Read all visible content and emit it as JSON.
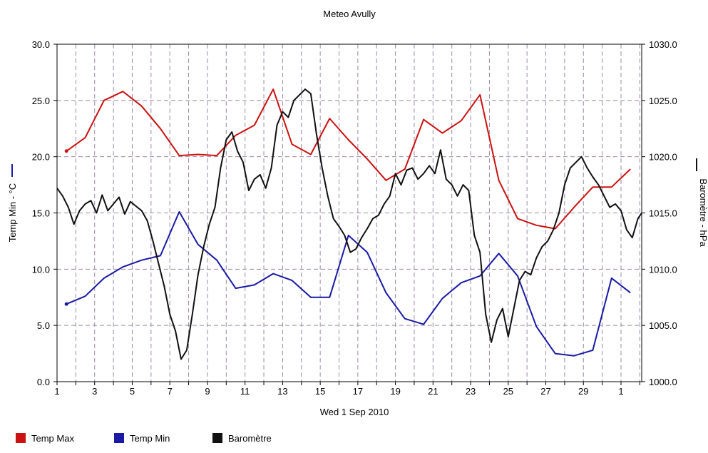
{
  "chart_data": {
    "type": "line",
    "title": "Meteo  Avully",
    "xlabel": "Wed 1 Sep 2010",
    "ylabel_left": "Temp Min - °C",
    "ylabel_right": "Baromètre - hPa",
    "x_tick_labels": [
      "1",
      "3",
      "5",
      "7",
      "9",
      "11",
      "13",
      "15",
      "17",
      "19",
      "21",
      "23",
      "25",
      "27",
      "29",
      "1"
    ],
    "x_tick_days": [
      1,
      3,
      5,
      7,
      9,
      11,
      13,
      15,
      17,
      19,
      21,
      23,
      25,
      27,
      29,
      31
    ],
    "xlim_days": [
      1,
      32.1
    ],
    "grid": true,
    "y_left": {
      "ylim": [
        0,
        30
      ],
      "ticks": [
        0,
        5,
        10,
        15,
        20,
        25,
        30
      ],
      "tick_labels": [
        "0.0",
        "5.0",
        "10.0",
        "15.0",
        "20.0",
        "25.0",
        "30.0"
      ]
    },
    "y_right": {
      "ylim": [
        1000,
        1030
      ],
      "ticks": [
        1000,
        1005,
        1010,
        1015,
        1020,
        1025,
        1030
      ],
      "tick_labels": [
        "1000.0",
        "1005.0",
        "1010.0",
        "1015.0",
        "1020.0",
        "1025.0",
        "1030.0"
      ]
    },
    "legend_position": "bottom-left",
    "series": [
      {
        "name": "Temp Max",
        "axis": "left",
        "color": "#cc1111",
        "x": [
          1.5,
          2.5,
          3.5,
          4.5,
          5.5,
          6.5,
          7.5,
          8.5,
          9.5,
          10.5,
          11.5,
          12.5,
          13.5,
          14.5,
          15.5,
          16.5,
          17.5,
          18.5,
          19.5,
          20.5,
          21.5,
          22.5,
          23.5,
          24.5,
          25.5,
          26.5,
          27.5,
          28.5,
          29.5,
          30.5,
          31.5
        ],
        "values": [
          20.5,
          21.7,
          25.0,
          25.8,
          24.5,
          22.5,
          20.1,
          20.2,
          20.1,
          21.9,
          22.8,
          26.0,
          21.1,
          20.2,
          23.4,
          21.5,
          19.8,
          17.9,
          18.9,
          23.3,
          22.1,
          23.2,
          25.5,
          17.9,
          14.5,
          13.9,
          13.6,
          15.5,
          17.3,
          17.3,
          18.9
        ]
      },
      {
        "name": "Temp Min",
        "axis": "left",
        "color": "#1a1aa6",
        "x": [
          1.5,
          2.5,
          3.5,
          4.5,
          5.5,
          6.5,
          7.5,
          8.5,
          9.5,
          10.5,
          11.5,
          12.5,
          13.5,
          14.5,
          15.5,
          16.5,
          17.5,
          18.5,
          19.5,
          20.5,
          21.5,
          22.5,
          23.5,
          24.5,
          25.5,
          26.5,
          27.5,
          28.5,
          29.5,
          30.5,
          31.5
        ],
        "values": [
          6.9,
          7.6,
          9.2,
          10.2,
          10.8,
          11.2,
          15.1,
          12.2,
          10.8,
          8.3,
          8.6,
          9.6,
          9.0,
          7.5,
          7.5,
          13.0,
          11.5,
          7.9,
          5.6,
          5.1,
          7.4,
          8.8,
          9.4,
          11.4,
          9.4,
          4.9,
          2.5,
          2.3,
          2.8,
          9.2,
          7.9
        ]
      },
      {
        "name": "Baromètre",
        "axis": "right",
        "color": "#111111",
        "x": [
          1.0,
          1.3,
          1.6,
          1.9,
          2.2,
          2.5,
          2.8,
          3.1,
          3.4,
          3.7,
          4.0,
          4.3,
          4.6,
          4.9,
          5.2,
          5.5,
          5.8,
          6.1,
          6.4,
          6.7,
          7.0,
          7.3,
          7.6,
          7.9,
          8.2,
          8.5,
          8.8,
          9.1,
          9.4,
          9.7,
          10.0,
          10.3,
          10.6,
          10.9,
          11.2,
          11.5,
          11.8,
          12.1,
          12.4,
          12.7,
          13.0,
          13.3,
          13.6,
          13.9,
          14.2,
          14.5,
          14.8,
          15.1,
          15.4,
          15.7,
          16.0,
          16.3,
          16.6,
          16.9,
          17.2,
          17.5,
          17.8,
          18.1,
          18.4,
          18.7,
          19.0,
          19.3,
          19.6,
          19.9,
          20.2,
          20.5,
          20.8,
          21.1,
          21.4,
          21.7,
          22.0,
          22.3,
          22.6,
          22.9,
          23.2,
          23.5,
          23.8,
          24.1,
          24.4,
          24.7,
          25.0,
          25.3,
          25.6,
          25.9,
          26.2,
          26.5,
          26.8,
          27.1,
          27.4,
          27.7,
          28.0,
          28.3,
          28.6,
          28.9,
          29.2,
          29.5,
          29.8,
          30.1,
          30.4,
          30.7,
          31.0,
          31.3,
          31.6,
          31.9,
          32.1
        ],
        "values": [
          1017.2,
          1016.5,
          1015.5,
          1014.0,
          1015.2,
          1015.8,
          1016.1,
          1015.0,
          1016.6,
          1015.2,
          1015.8,
          1016.4,
          1014.9,
          1016.0,
          1015.6,
          1015.2,
          1014.3,
          1012.5,
          1010.5,
          1008.5,
          1006.0,
          1004.5,
          1002.0,
          1002.8,
          1006.0,
          1009.5,
          1012.0,
          1014.0,
          1015.5,
          1019.0,
          1021.5,
          1022.2,
          1020.5,
          1019.5,
          1017.0,
          1018.0,
          1018.4,
          1017.2,
          1019.0,
          1022.8,
          1024.0,
          1023.5,
          1025.0,
          1025.5,
          1026.0,
          1025.6,
          1022.0,
          1019.0,
          1016.5,
          1014.5,
          1013.8,
          1013.0,
          1011.5,
          1011.8,
          1012.8,
          1013.6,
          1014.5,
          1014.8,
          1015.8,
          1016.5,
          1018.5,
          1017.5,
          1018.8,
          1019.0,
          1018.0,
          1018.5,
          1019.2,
          1018.5,
          1020.6,
          1018.0,
          1017.5,
          1016.5,
          1017.5,
          1017.0,
          1013.0,
          1011.5,
          1006.0,
          1003.5,
          1005.5,
          1006.5,
          1004.0,
          1006.5,
          1009.0,
          1009.8,
          1009.5,
          1011.0,
          1012.0,
          1012.5,
          1013.5,
          1015.0,
          1017.5,
          1019.0,
          1019.5,
          1020.0,
          1019.0,
          1018.2,
          1017.5,
          1016.5,
          1015.5,
          1015.8,
          1015.2,
          1013.5,
          1012.8,
          1014.5,
          1015.0
        ]
      }
    ],
    "legend": [
      {
        "label": "Temp Max",
        "color": "#cc1111"
      },
      {
        "label": "Temp Min",
        "color": "#1a1aa6"
      },
      {
        "label": "Baromètre",
        "color": "#111111"
      }
    ]
  }
}
